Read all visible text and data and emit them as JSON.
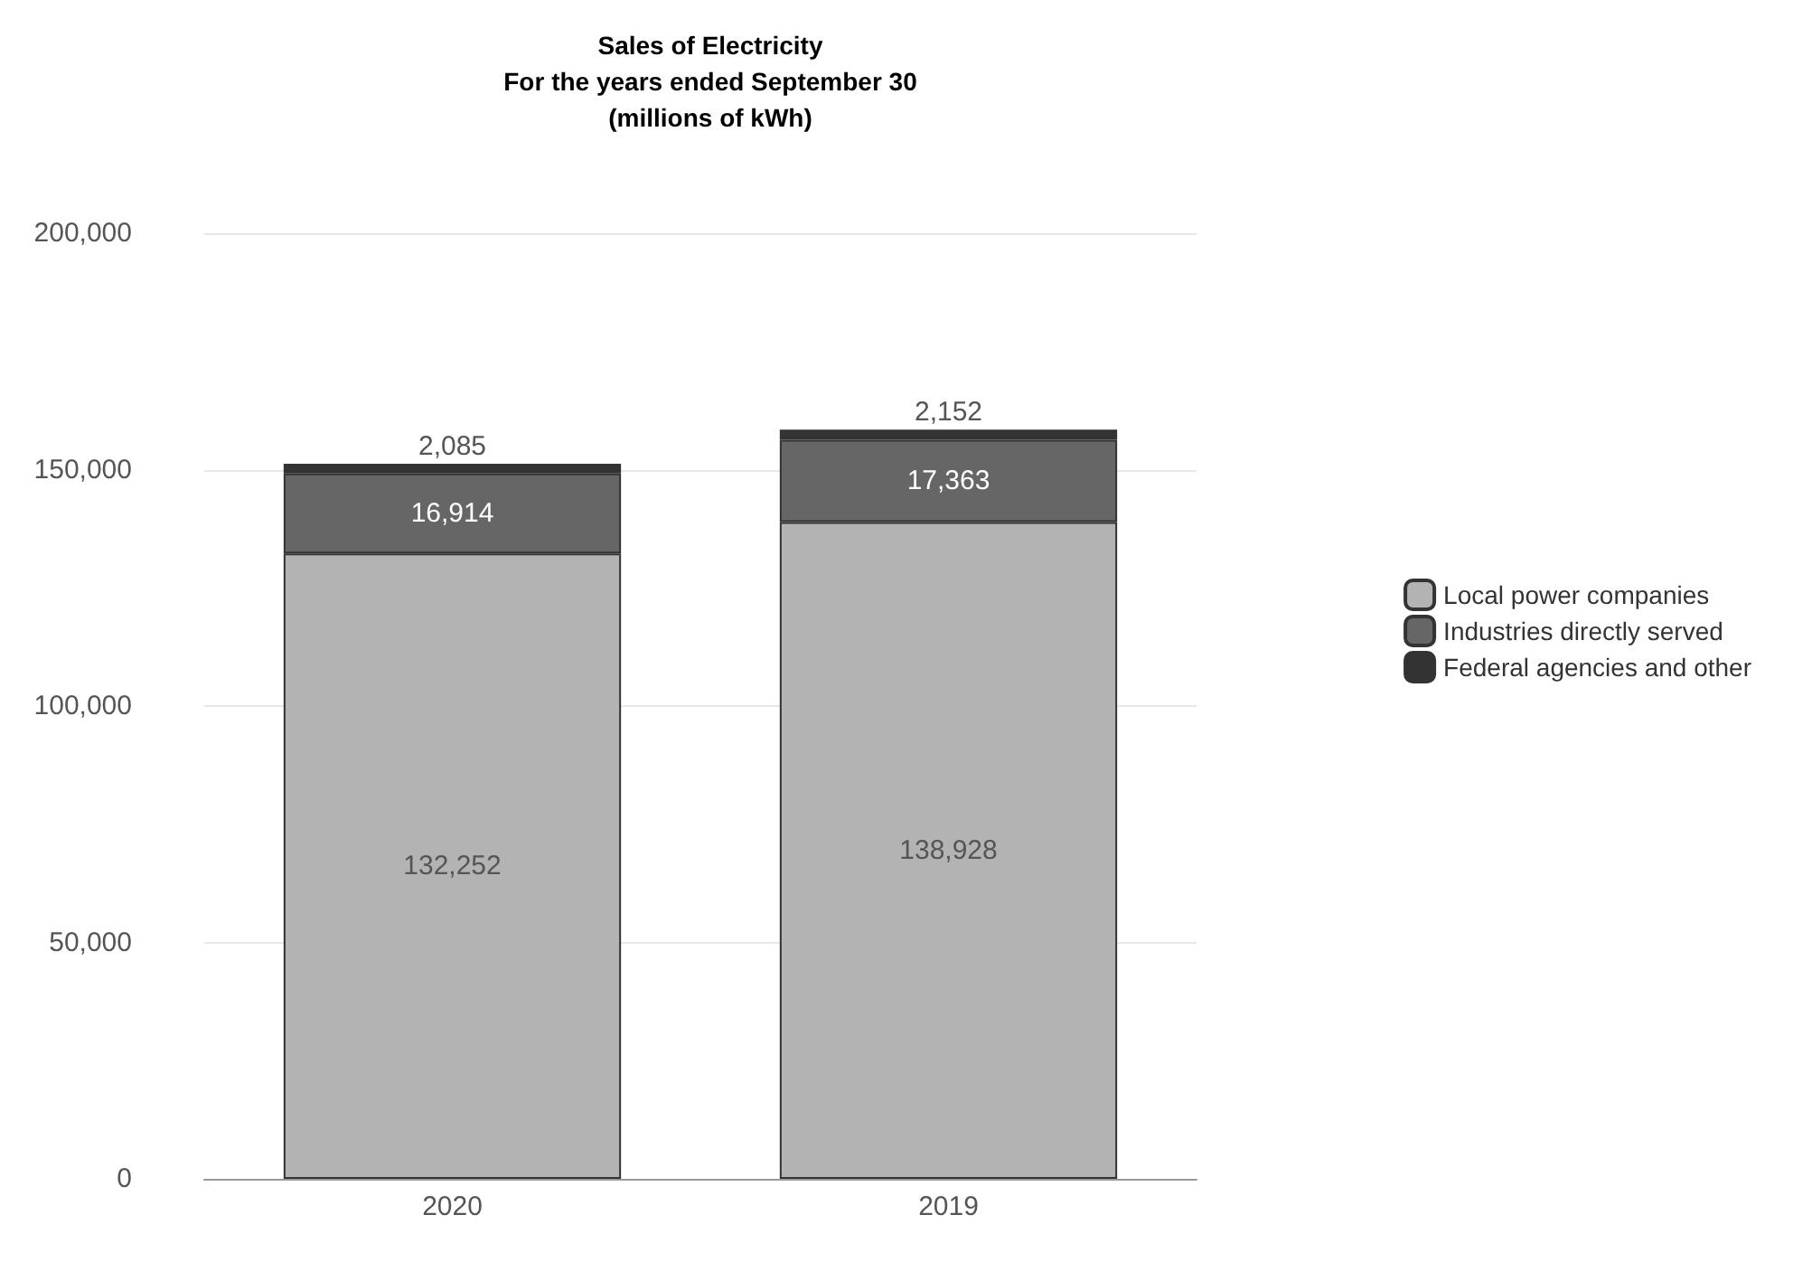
{
  "chart_data": {
    "type": "bar",
    "title": "Sales of Electricity\nFor the years ended September 30\n(millions of kWh)",
    "categories": [
      "2020",
      "2019"
    ],
    "stacked": true,
    "series": [
      {
        "name": "Local power companies",
        "color": "#b3b3b3",
        "values": [
          132252,
          138928
        ],
        "value_labels": [
          "132,252",
          "138,928"
        ]
      },
      {
        "name": "Industries directly served",
        "color": "#666666",
        "values": [
          16914,
          17363
        ],
        "value_labels": [
          "16,914",
          "17,363"
        ]
      },
      {
        "name": "Federal agencies and other",
        "color": "#333333",
        "values": [
          2085,
          2152
        ],
        "value_labels": [
          "2,085",
          "2,152"
        ]
      }
    ],
    "ylim": [
      0,
      200000
    ],
    "yticks": [
      {
        "value": 0,
        "label": "0"
      },
      {
        "value": 50000,
        "label": "50,000"
      },
      {
        "value": 100000,
        "label": "100,000"
      },
      {
        "value": 150000,
        "label": "150,000"
      },
      {
        "value": 200000,
        "label": "200,000"
      }
    ],
    "grid": "y",
    "legend": "right"
  }
}
